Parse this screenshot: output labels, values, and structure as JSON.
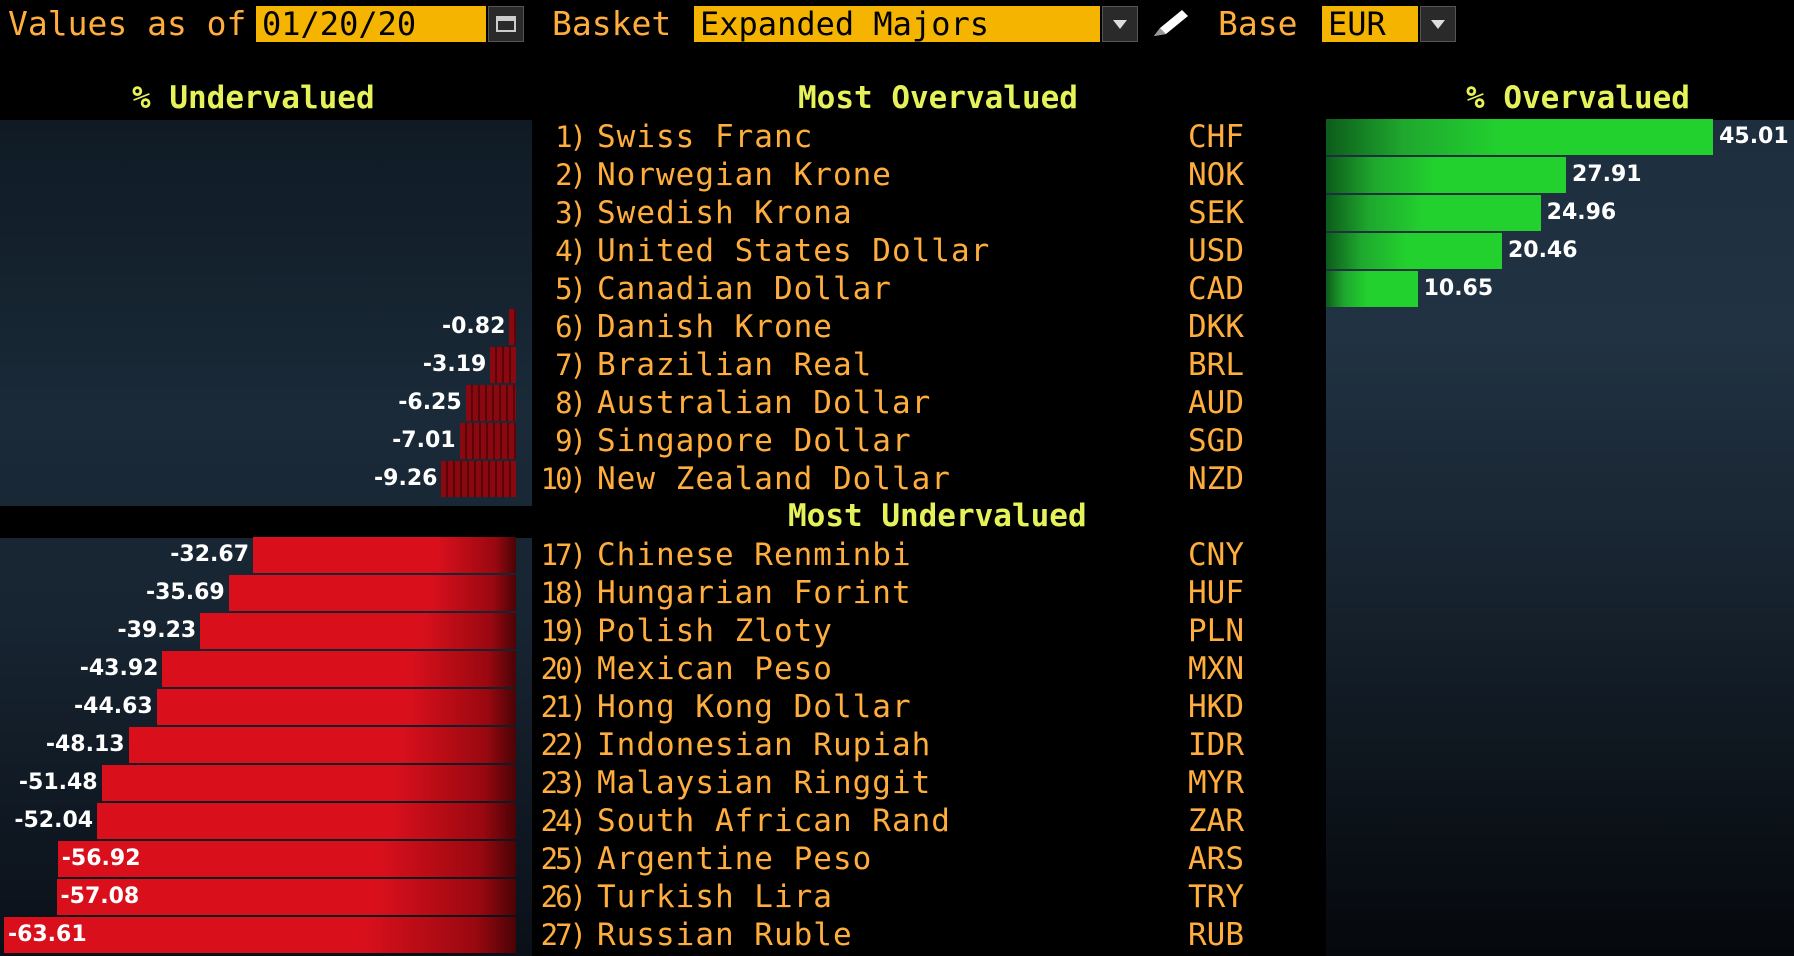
{
  "toolbar": {
    "values_as_of_label": "Values as of",
    "date_value": "01/20/20",
    "basket_label": "Basket",
    "basket_value": "Expanded Majors",
    "base_label": "Base",
    "base_value": "EUR"
  },
  "headers": {
    "undervalued_pct": "% Undervalued",
    "most_overvalued": "Most Overvalued",
    "overvalued_pct": "% Overvalued",
    "most_undervalued": "Most Undervalued"
  },
  "overvalued_rows": [
    {
      "rank": "1)",
      "name": "Swiss Franc",
      "code": "CHF",
      "value": 45.01,
      "label": "45.01"
    },
    {
      "rank": "2)",
      "name": "Norwegian Krone",
      "code": "NOK",
      "value": 27.91,
      "label": "27.91"
    },
    {
      "rank": "3)",
      "name": "Swedish Krona",
      "code": "SEK",
      "value": 24.96,
      "label": "24.96"
    },
    {
      "rank": "4)",
      "name": "United States Dollar",
      "code": "USD",
      "value": 20.46,
      "label": "20.46"
    },
    {
      "rank": "5)",
      "name": "Canadian Dollar",
      "code": "CAD",
      "value": 10.65,
      "label": "10.65"
    },
    {
      "rank": "6)",
      "name": "Danish Krone",
      "code": "DKK",
      "value": -0.82,
      "label": "-0.82"
    },
    {
      "rank": "7)",
      "name": "Brazilian Real",
      "code": "BRL",
      "value": -3.19,
      "label": "-3.19"
    },
    {
      "rank": "8)",
      "name": "Australian Dollar",
      "code": "AUD",
      "value": -6.25,
      "label": "-6.25"
    },
    {
      "rank": "9)",
      "name": "Singapore Dollar",
      "code": "SGD",
      "value": -7.01,
      "label": "-7.01"
    },
    {
      "rank": "10)",
      "name": "New Zealand Dollar",
      "code": "NZD",
      "value": -9.26,
      "label": "-9.26"
    }
  ],
  "undervalued_rows": [
    {
      "rank": "17)",
      "name": "Chinese Renminbi",
      "code": "CNY",
      "value": -32.67,
      "label": "-32.67"
    },
    {
      "rank": "18)",
      "name": "Hungarian Forint",
      "code": "HUF",
      "value": -35.69,
      "label": "-35.69"
    },
    {
      "rank": "19)",
      "name": "Polish Zloty",
      "code": "PLN",
      "value": -39.23,
      "label": "-39.23"
    },
    {
      "rank": "20)",
      "name": "Mexican Peso",
      "code": "MXN",
      "value": -43.92,
      "label": "-43.92"
    },
    {
      "rank": "21)",
      "name": "Hong Kong Dollar",
      "code": "HKD",
      "value": -44.63,
      "label": "-44.63"
    },
    {
      "rank": "22)",
      "name": "Indonesian Rupiah",
      "code": "IDR",
      "value": -48.13,
      "label": "-48.13"
    },
    {
      "rank": "23)",
      "name": "Malaysian Ringgit",
      "code": "MYR",
      "value": -51.48,
      "label": "-51.48"
    },
    {
      "rank": "24)",
      "name": "South African Rand",
      "code": "ZAR",
      "value": -52.04,
      "label": "-52.04"
    },
    {
      "rank": "25)",
      "name": "Argentine Peso",
      "code": "ARS",
      "value": -56.92,
      "label": "-56.92"
    },
    {
      "rank": "26)",
      "name": "Turkish Lira",
      "code": "TRY",
      "value": -57.08,
      "label": "-57.08"
    },
    {
      "rank": "27)",
      "name": "Russian Ruble",
      "code": "RUB",
      "value": -63.61,
      "label": "-63.61"
    }
  ],
  "icons": {
    "calendar": "calendar-icon",
    "basket_dropdown": "chevron-down-icon",
    "edit": "pencil-icon",
    "base_dropdown": "chevron-down-icon"
  },
  "colors": {
    "accent_text": "#ffae3d",
    "header_text": "#e6f25a",
    "field_bg": "#f5b400",
    "overvalued_bar": "#22d02e",
    "undervalued_bar": "#d9101c"
  }
}
